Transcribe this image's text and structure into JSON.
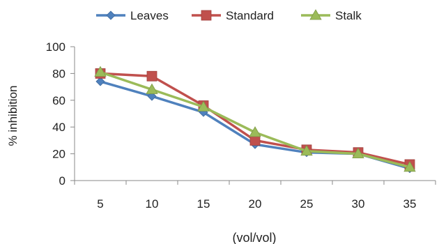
{
  "chart_data": {
    "type": "line",
    "xlabel": "(vol/vol)",
    "ylabel": "% inhibition",
    "categories": [
      "5",
      "10",
      "15",
      "20",
      "25",
      "30",
      "35"
    ],
    "ylim": [
      0,
      100
    ],
    "yticks": [
      0,
      20,
      40,
      60,
      80,
      100
    ],
    "grid": false,
    "legend_position": "top",
    "series": [
      {
        "name": "Leaves",
        "color": "#4F81BD",
        "marker": "diamond",
        "values": [
          74,
          63,
          51,
          27,
          21,
          20,
          9
        ]
      },
      {
        "name": "Standard",
        "color": "#C0504D",
        "marker": "square",
        "values": [
          80,
          78,
          56,
          30,
          23,
          21,
          12
        ]
      },
      {
        "name": "Stalk",
        "color": "#9BBB59",
        "marker": "triangle",
        "values": [
          81,
          68,
          55,
          36,
          22,
          20,
          10
        ]
      }
    ]
  }
}
